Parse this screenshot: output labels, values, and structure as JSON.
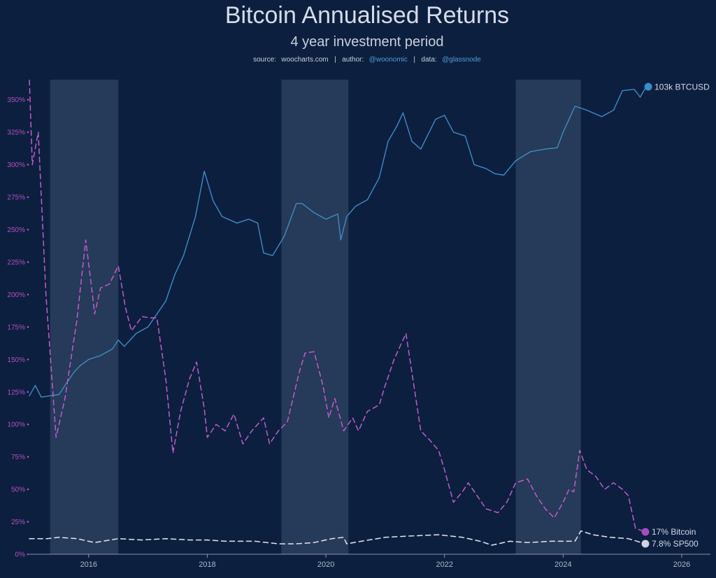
{
  "header": {
    "title": "Bitcoin Annualised Returns",
    "subtitle": "4 year investment period",
    "source_prefix": "source:",
    "source_site": "woocharts.com",
    "sep1": "|",
    "author_prefix": "author:",
    "author": "@woonomic",
    "sep2": "|",
    "data_prefix": "data:",
    "data_source": "@glassnode"
  },
  "colors": {
    "background": "#0c1f3f",
    "btc_price": "#3d8cc4",
    "bitcoin_return": "#c05ccd",
    "sp500_return": "#e6e6ee",
    "shade": "#2b3f5e",
    "y_axis_text": "#b44fc0",
    "x_axis_text": "#aeb8c8"
  },
  "chart_data": {
    "type": "line",
    "title": "Bitcoin Annualised Returns",
    "subtitle": "4 year investment period",
    "xlabel": "",
    "ylabel": "",
    "xlim": [
      2015.0,
      2026.5
    ],
    "ylim": [
      0,
      365
    ],
    "y_ticks": [
      0,
      25,
      50,
      75,
      100,
      125,
      150,
      175,
      200,
      225,
      250,
      275,
      300,
      325,
      350
    ],
    "y_tick_labels": [
      "0%",
      "25%",
      "50%",
      "75%",
      "100%",
      "125%",
      "150%",
      "175%",
      "200%",
      "225%",
      "250%",
      "275%",
      "300%",
      "325%",
      "350%"
    ],
    "x_ticks": [
      2016,
      2018,
      2020,
      2022,
      2024,
      2026
    ],
    "x_tick_labels": [
      "2016",
      "2018",
      "2020",
      "2022",
      "2024",
      "2026"
    ],
    "shaded_periods": [
      [
        2015.35,
        2016.5
      ],
      [
        2019.25,
        2020.38
      ],
      [
        2023.2,
        2024.3
      ]
    ],
    "grid": false,
    "series": [
      {
        "name": "BTCUSD",
        "axis": "log price (secondary, unlabeled)",
        "style": "solid",
        "label": "103k BTCUSD",
        "points": [
          [
            2015.0,
            122
          ],
          [
            2015.1,
            130
          ],
          [
            2015.2,
            121
          ],
          [
            2015.35,
            122
          ],
          [
            2015.5,
            123
          ],
          [
            2015.6,
            130
          ],
          [
            2015.75,
            140
          ],
          [
            2015.85,
            145
          ],
          [
            2016.0,
            150
          ],
          [
            2016.2,
            153
          ],
          [
            2016.4,
            158
          ],
          [
            2016.5,
            165
          ],
          [
            2016.6,
            160
          ],
          [
            2016.8,
            170
          ],
          [
            2017.0,
            175
          ],
          [
            2017.15,
            185
          ],
          [
            2017.3,
            195
          ],
          [
            2017.45,
            215
          ],
          [
            2017.6,
            230
          ],
          [
            2017.8,
            260
          ],
          [
            2017.95,
            295
          ],
          [
            2018.1,
            272
          ],
          [
            2018.25,
            260
          ],
          [
            2018.5,
            255
          ],
          [
            2018.7,
            258
          ],
          [
            2018.85,
            255
          ],
          [
            2018.95,
            232
          ],
          [
            2019.1,
            230
          ],
          [
            2019.3,
            245
          ],
          [
            2019.5,
            270
          ],
          [
            2019.6,
            270
          ],
          [
            2019.8,
            263
          ],
          [
            2020.0,
            258
          ],
          [
            2020.2,
            262
          ],
          [
            2020.25,
            242
          ],
          [
            2020.35,
            260
          ],
          [
            2020.5,
            268
          ],
          [
            2020.7,
            273
          ],
          [
            2020.9,
            290
          ],
          [
            2021.05,
            318
          ],
          [
            2021.2,
            330
          ],
          [
            2021.3,
            340
          ],
          [
            2021.45,
            318
          ],
          [
            2021.6,
            312
          ],
          [
            2021.85,
            335
          ],
          [
            2022.0,
            338
          ],
          [
            2022.15,
            325
          ],
          [
            2022.35,
            322
          ],
          [
            2022.5,
            300
          ],
          [
            2022.7,
            297
          ],
          [
            2022.85,
            293
          ],
          [
            2023.0,
            292
          ],
          [
            2023.2,
            303
          ],
          [
            2023.45,
            310
          ],
          [
            2023.7,
            312
          ],
          [
            2023.9,
            313
          ],
          [
            2024.0,
            325
          ],
          [
            2024.2,
            345
          ],
          [
            2024.4,
            342
          ],
          [
            2024.65,
            337
          ],
          [
            2024.85,
            342
          ],
          [
            2025.0,
            357
          ],
          [
            2025.2,
            358
          ],
          [
            2025.3,
            352
          ],
          [
            2025.4,
            360
          ]
        ]
      },
      {
        "name": "Bitcoin",
        "axis": "annualised return %",
        "style": "dashed",
        "label": "17% Bitcoin",
        "points": [
          [
            2015.0,
            365
          ],
          [
            2015.05,
            300
          ],
          [
            2015.15,
            325
          ],
          [
            2015.28,
            200
          ],
          [
            2015.45,
            90
          ],
          [
            2015.6,
            120
          ],
          [
            2015.8,
            180
          ],
          [
            2015.95,
            242
          ],
          [
            2016.05,
            205
          ],
          [
            2016.1,
            185
          ],
          [
            2016.2,
            205
          ],
          [
            2016.35,
            208
          ],
          [
            2016.5,
            222
          ],
          [
            2016.62,
            190
          ],
          [
            2016.72,
            172
          ],
          [
            2016.9,
            183
          ],
          [
            2017.05,
            182
          ],
          [
            2017.15,
            182
          ],
          [
            2017.3,
            135
          ],
          [
            2017.42,
            78
          ],
          [
            2017.55,
            110
          ],
          [
            2017.7,
            135
          ],
          [
            2017.82,
            148
          ],
          [
            2017.95,
            112
          ],
          [
            2018.0,
            90
          ],
          [
            2018.15,
            100
          ],
          [
            2018.3,
            95
          ],
          [
            2018.45,
            108
          ],
          [
            2018.6,
            85
          ],
          [
            2018.75,
            95
          ],
          [
            2018.95,
            105
          ],
          [
            2019.05,
            85
          ],
          [
            2019.2,
            95
          ],
          [
            2019.35,
            102
          ],
          [
            2019.55,
            140
          ],
          [
            2019.65,
            155
          ],
          [
            2019.8,
            156
          ],
          [
            2019.95,
            130
          ],
          [
            2020.05,
            105
          ],
          [
            2020.15,
            120
          ],
          [
            2020.3,
            95
          ],
          [
            2020.45,
            105
          ],
          [
            2020.55,
            95
          ],
          [
            2020.7,
            110
          ],
          [
            2020.9,
            115
          ],
          [
            2021.0,
            130
          ],
          [
            2021.15,
            150
          ],
          [
            2021.25,
            160
          ],
          [
            2021.35,
            170
          ],
          [
            2021.45,
            140
          ],
          [
            2021.6,
            95
          ],
          [
            2021.75,
            88
          ],
          [
            2021.9,
            80
          ],
          [
            2022.0,
            65
          ],
          [
            2022.15,
            40
          ],
          [
            2022.3,
            48
          ],
          [
            2022.4,
            55
          ],
          [
            2022.55,
            45
          ],
          [
            2022.7,
            35
          ],
          [
            2022.9,
            32
          ],
          [
            2023.05,
            40
          ],
          [
            2023.2,
            55
          ],
          [
            2023.4,
            58
          ],
          [
            2023.55,
            45
          ],
          [
            2023.7,
            35
          ],
          [
            2023.85,
            28
          ],
          [
            2024.0,
            40
          ],
          [
            2024.1,
            50
          ],
          [
            2024.18,
            48
          ],
          [
            2024.28,
            80
          ],
          [
            2024.4,
            65
          ],
          [
            2024.55,
            60
          ],
          [
            2024.7,
            50
          ],
          [
            2024.85,
            55
          ],
          [
            2025.0,
            50
          ],
          [
            2025.1,
            45
          ],
          [
            2025.22,
            20
          ],
          [
            2025.4,
            17
          ]
        ]
      },
      {
        "name": "SP500",
        "axis": "annualised return %",
        "style": "dashed",
        "label": "7.8% SP500",
        "points": [
          [
            2015.0,
            12
          ],
          [
            2015.3,
            12
          ],
          [
            2015.5,
            13
          ],
          [
            2015.8,
            12
          ],
          [
            2016.1,
            9
          ],
          [
            2016.5,
            12
          ],
          [
            2016.9,
            11
          ],
          [
            2017.3,
            12
          ],
          [
            2017.7,
            11
          ],
          [
            2018.0,
            11
          ],
          [
            2018.3,
            10
          ],
          [
            2018.8,
            10
          ],
          [
            2019.2,
            8
          ],
          [
            2019.5,
            8
          ],
          [
            2019.8,
            9
          ],
          [
            2020.1,
            12
          ],
          [
            2020.3,
            13
          ],
          [
            2020.35,
            8
          ],
          [
            2020.6,
            10
          ],
          [
            2021.0,
            13
          ],
          [
            2021.4,
            14
          ],
          [
            2021.9,
            15
          ],
          [
            2022.3,
            13
          ],
          [
            2022.6,
            10
          ],
          [
            2022.8,
            7
          ],
          [
            2023.1,
            10
          ],
          [
            2023.4,
            9
          ],
          [
            2023.8,
            10
          ],
          [
            2024.2,
            10
          ],
          [
            2024.3,
            18
          ],
          [
            2024.5,
            15
          ],
          [
            2024.8,
            13
          ],
          [
            2025.1,
            12
          ],
          [
            2025.4,
            7.8
          ]
        ]
      }
    ]
  }
}
